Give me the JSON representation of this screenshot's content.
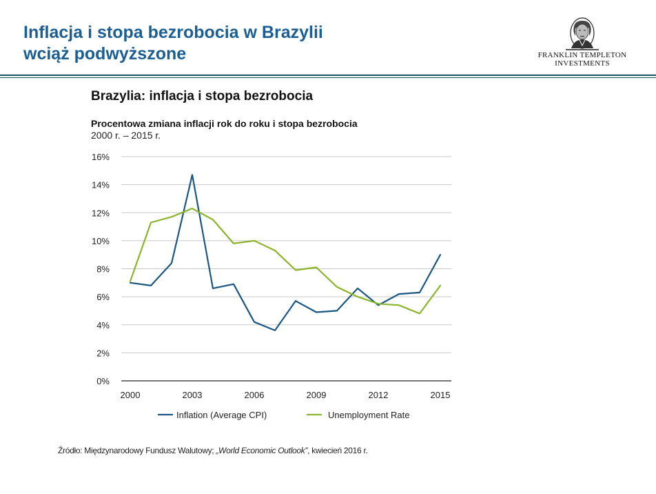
{
  "slide": {
    "title_line1": "Inflacja i stopa bezrobocia w Brazylii",
    "title_line2": "wciąż podwyższone"
  },
  "logo": {
    "line1": "FRANKLIN TEMPLETON",
    "line2": "INVESTMENTS",
    "icon": "benjamin-franklin-portrait-icon"
  },
  "colors": {
    "title": "#1b5e94",
    "rule": "#16505e",
    "inflation": "#1a5683",
    "unemployment": "#8ab42a",
    "grid": "#c8c8c8"
  },
  "source": {
    "prefix": "Źródło: Międzynarodowy Fundusz Walutowy; ",
    "italic": "„World Economic Outlook”",
    "suffix": ", kwiecień 2016 r."
  },
  "chart_data": {
    "type": "line",
    "title": "Brazylia:  inflacja  i stopa bezrobocia",
    "subtitle": "Procentowa zmiana inflacji rok do roku i stopa bezrobocia",
    "period": "2000 r. – 2015 r.",
    "xlabel": "",
    "ylabel": "",
    "x": [
      2000,
      2001,
      2002,
      2003,
      2004,
      2005,
      2006,
      2007,
      2008,
      2009,
      2010,
      2011,
      2012,
      2013,
      2014,
      2015
    ],
    "x_ticks": [
      2000,
      2003,
      2006,
      2009,
      2012,
      2015
    ],
    "x_tick_labels": [
      "2000",
      "2003",
      "2006",
      "2009",
      "2012",
      "2015"
    ],
    "xlim": [
      2000,
      2015
    ],
    "ylim": [
      0,
      16
    ],
    "y_ticks": [
      0,
      2,
      4,
      6,
      8,
      10,
      12,
      14,
      16
    ],
    "y_tick_labels": [
      "0%",
      "2%",
      "4%",
      "6%",
      "8%",
      "10%",
      "12%",
      "14%",
      "16%"
    ],
    "grid": true,
    "legend_position": "bottom",
    "series": [
      {
        "name": "Inflation (Average CPI)",
        "color": "#1a5683",
        "values": [
          7.0,
          6.8,
          8.4,
          14.7,
          6.6,
          6.9,
          4.2,
          3.6,
          5.7,
          4.9,
          5.0,
          6.6,
          5.4,
          6.2,
          6.3,
          9.0
        ]
      },
      {
        "name": "Unemployment Rate",
        "color": "#8ab42a",
        "values": [
          7.1,
          11.3,
          11.7,
          12.3,
          11.5,
          9.8,
          10.0,
          9.3,
          7.9,
          8.1,
          6.7,
          6.0,
          5.5,
          5.4,
          4.8,
          6.8
        ]
      }
    ]
  }
}
